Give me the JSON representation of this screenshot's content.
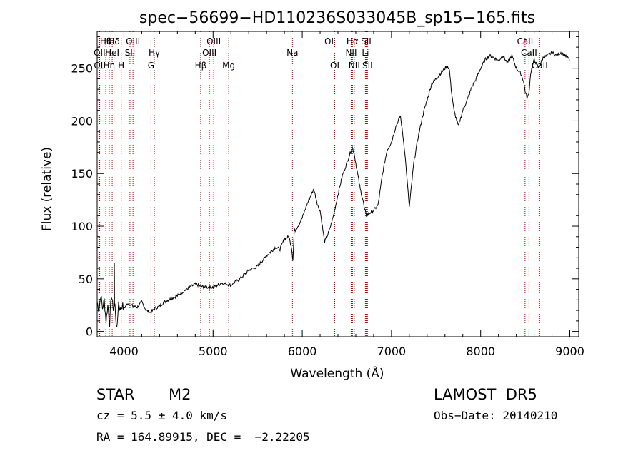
{
  "chart_data": {
    "type": "line",
    "title": "spec−56699−HD110236S033045B_sp15−165.fits",
    "xlabel": "Wavelength (Å)",
    "ylabel": "Flux (relative)",
    "xlim": [
      3700,
      9100
    ],
    "ylim": [
      -5,
      285
    ],
    "xticks": [
      4000,
      5000,
      6000,
      7000,
      8000,
      9000
    ],
    "yticks": [
      0,
      50,
      100,
      150,
      200,
      250
    ],
    "x": [
      3700,
      3720,
      3740,
      3760,
      3780,
      3800,
      3820,
      3840,
      3860,
      3880,
      3900,
      3920,
      3940,
      3960,
      3980,
      4000,
      4050,
      4100,
      4150,
      4200,
      4250,
      4300,
      4350,
      4400,
      4450,
      4500,
      4600,
      4700,
      4800,
      4900,
      5000,
      5100,
      5200,
      5300,
      5400,
      5500,
      5600,
      5700,
      5750,
      5800,
      5850,
      5880,
      5895,
      5910,
      5950,
      6000,
      6050,
      6100,
      6130,
      6150,
      6180,
      6200,
      6250,
      6300,
      6350,
      6400,
      6450,
      6500,
      6530,
      6560,
      6580,
      6600,
      6620,
      6650,
      6680,
      6700,
      6720,
      6750,
      6800,
      6850,
      6900,
      6950,
      7000,
      7050,
      7100,
      7130,
      7150,
      7200,
      7250,
      7300,
      7350,
      7400,
      7450,
      7500,
      7550,
      7600,
      7630,
      7650,
      7670,
      7700,
      7750,
      7800,
      7850,
      7900,
      7950,
      8000,
      8050,
      8100,
      8150,
      8200,
      8250,
      8300,
      8350,
      8400,
      8450,
      8480,
      8500,
      8520,
      8540,
      8560,
      8600,
      8620,
      8650,
      8700,
      8750,
      8800,
      8850,
      8900,
      8950,
      9000
    ],
    "series": [
      {
        "values": [
          28,
          20,
          35,
          22,
          30,
          10,
          25,
          8,
          35,
          22,
          25,
          0,
          28,
          20,
          25,
          22,
          27,
          24,
          23,
          28,
          20,
          18,
          22,
          24,
          28,
          30,
          34,
          40,
          45,
          42,
          42,
          46,
          44,
          50,
          58,
          62,
          72,
          80,
          78,
          88,
          90,
          80,
          68,
          95,
          100,
          108,
          120,
          130,
          135,
          128,
          118,
          115,
          85,
          95,
          110,
          130,
          148,
          160,
          168,
          175,
          170,
          160,
          150,
          135,
          125,
          115,
          110,
          112,
          115,
          120,
          150,
          172,
          180,
          195,
          205,
          185,
          170,
          118,
          160,
          185,
          205,
          220,
          235,
          240,
          245,
          250,
          252,
          248,
          230,
          210,
          195,
          210,
          220,
          232,
          240,
          250,
          258,
          262,
          260,
          257,
          262,
          255,
          262,
          250,
          245,
          238,
          228,
          222,
          225,
          245,
          258,
          255,
          250,
          260,
          262,
          265,
          262,
          265,
          262,
          258
        ]
      }
    ],
    "spike": {
      "x": 3895,
      "y": 65
    },
    "grid": false,
    "colors": {
      "line": "#000000",
      "markers": "#b00000",
      "axes": "#000000"
    },
    "line_markers": [
      {
        "x": 3797,
        "labels": [
          "Hθ"
        ],
        "rows": [
          0
        ]
      },
      {
        "x": 3835,
        "labels": [
          "K"
        ],
        "rows": [
          0
        ]
      },
      {
        "x": 3889,
        "labels": [
          "Hδ"
        ],
        "rows": [
          0
        ]
      },
      {
        "x": 4102,
        "labels": [
          "OIII"
        ],
        "rows": [
          0
        ]
      },
      {
        "x": 5007,
        "labels": [
          "OIII"
        ],
        "rows": [
          0
        ]
      },
      {
        "x": 6300,
        "labels": [
          "OI"
        ],
        "rows": [
          0
        ]
      },
      {
        "x": 6563,
        "labels": [
          "Hα"
        ],
        "rows": [
          0
        ]
      },
      {
        "x": 6716,
        "labels": [
          "SII"
        ],
        "rows": [
          0
        ]
      },
      {
        "x": 8498,
        "labels": [
          "CaII"
        ],
        "rows": [
          0
        ]
      },
      {
        "x": 3727,
        "labels": [
          "OII"
        ],
        "rows": [
          1
        ]
      },
      {
        "x": 3869,
        "labels": [
          "HeI"
        ],
        "rows": [
          1
        ]
      },
      {
        "x": 4068,
        "labels": [
          "SII"
        ],
        "rows": [
          1
        ]
      },
      {
        "x": 4341,
        "labels": [
          "Hγ"
        ],
        "rows": [
          1
        ]
      },
      {
        "x": 4959,
        "labels": [
          "OIII"
        ],
        "rows": [
          1
        ]
      },
      {
        "x": 5890,
        "labels": [
          "Na"
        ],
        "rows": [
          1
        ]
      },
      {
        "x": 6548,
        "labels": [
          "NII"
        ],
        "rows": [
          1
        ]
      },
      {
        "x": 6708,
        "labels": [
          "Li"
        ],
        "rows": [
          1
        ]
      },
      {
        "x": 8542,
        "labels": [
          "CaII"
        ],
        "rows": [
          1
        ]
      },
      {
        "x": 3729,
        "labels": [
          "OII"
        ],
        "rows": [
          2
        ]
      },
      {
        "x": 3835,
        "labels": [
          "Hη"
        ],
        "rows": [
          2
        ]
      },
      {
        "x": 3970,
        "labels": [
          "H"
        ],
        "rows": [
          2
        ]
      },
      {
        "x": 4304,
        "labels": [
          "G"
        ],
        "rows": [
          2
        ]
      },
      {
        "x": 4861,
        "labels": [
          "Hβ"
        ],
        "rows": [
          2
        ]
      },
      {
        "x": 5175,
        "labels": [
          "Mg"
        ],
        "rows": [
          2
        ]
      },
      {
        "x": 6364,
        "labels": [
          "OI"
        ],
        "rows": [
          2
        ]
      },
      {
        "x": 6583,
        "labels": [
          "NII"
        ],
        "rows": [
          2
        ]
      },
      {
        "x": 6731,
        "labels": [
          "SII"
        ],
        "rows": [
          2
        ]
      },
      {
        "x": 8662,
        "labels": [
          "CaII"
        ],
        "rows": [
          2
        ]
      }
    ]
  },
  "info": {
    "class_label": "STAR",
    "subclass_label": "M2",
    "survey": "LAMOST  DR5",
    "redshift": "cz = 5.5 ± 4.0 km/s",
    "obs_date": "Obs−Date: 20140210",
    "coords": "RA = 164.89915, DEC =  −2.22205"
  }
}
